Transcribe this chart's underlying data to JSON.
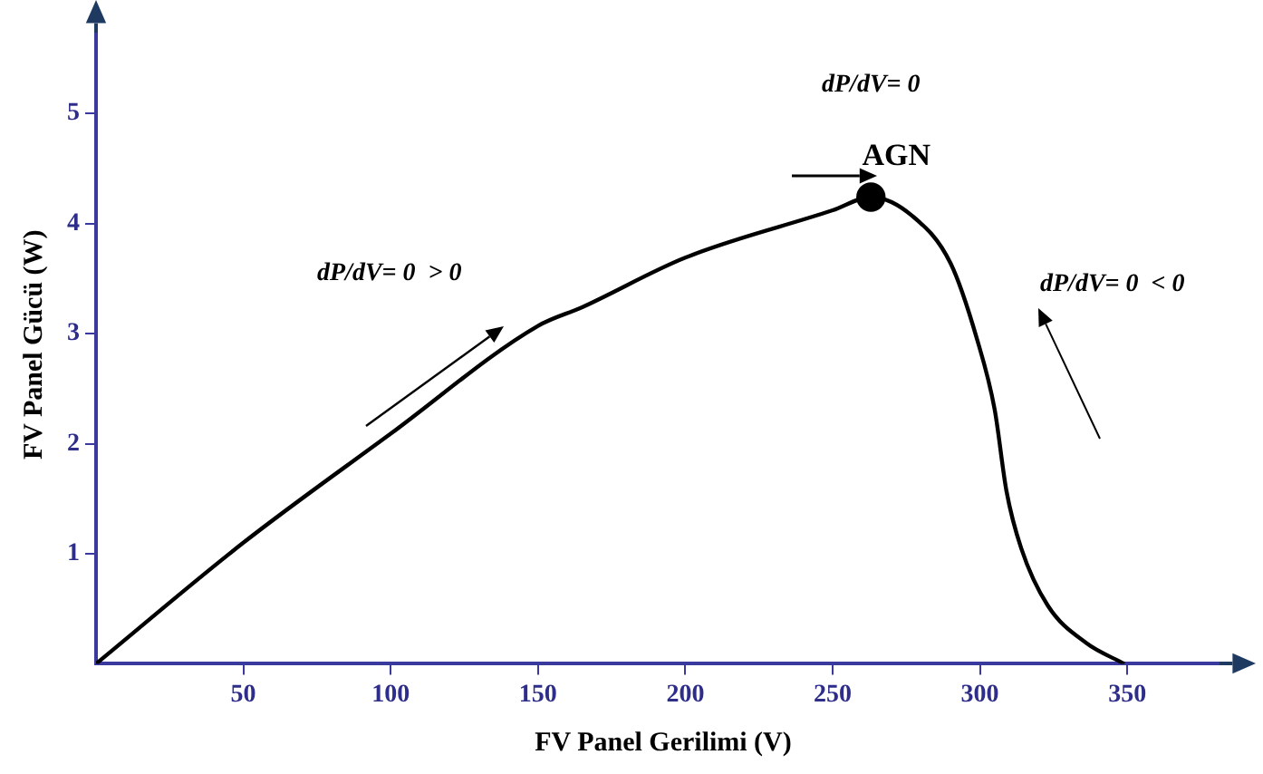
{
  "chart_data": {
    "type": "line",
    "xlabel": "FV Panel Gerilimi (V)",
    "ylabel": "FV Panel Gücü (W)",
    "xlim": [
      0,
      385
    ],
    "ylim": [
      0,
      5.8
    ],
    "xticks": [
      50,
      100,
      150,
      200,
      250,
      300,
      350
    ],
    "yticks": [
      1,
      2,
      3,
      4,
      5
    ],
    "grid": false,
    "legend": false,
    "marker": "none",
    "line_style": "solid",
    "series": [
      {
        "color": "#000000",
        "x": [
          0,
          50,
          100,
          150,
          165,
          200,
          250,
          263,
          277,
          290,
          299,
          305,
          309,
          314,
          323,
          336,
          349
        ],
        "values": [
          0,
          1.1,
          2.09,
          3.07,
          3.24,
          3.69,
          4.12,
          4.24,
          4.07,
          3.64,
          2.95,
          2.31,
          1.57,
          1.05,
          0.53,
          0.19,
          0
        ]
      },
      {
        "type": "scatter",
        "marker": "circle",
        "color": "#000000",
        "x": [
          263
        ],
        "values": [
          4.24
        ]
      }
    ],
    "annotations": [
      "dP/dV= 0",
      {
        "text": "AGN",
        "x": 263,
        "y": 4.24
      },
      "dP/dV= 0  > 0",
      "dP/dV= 0  < 0"
    ]
  }
}
